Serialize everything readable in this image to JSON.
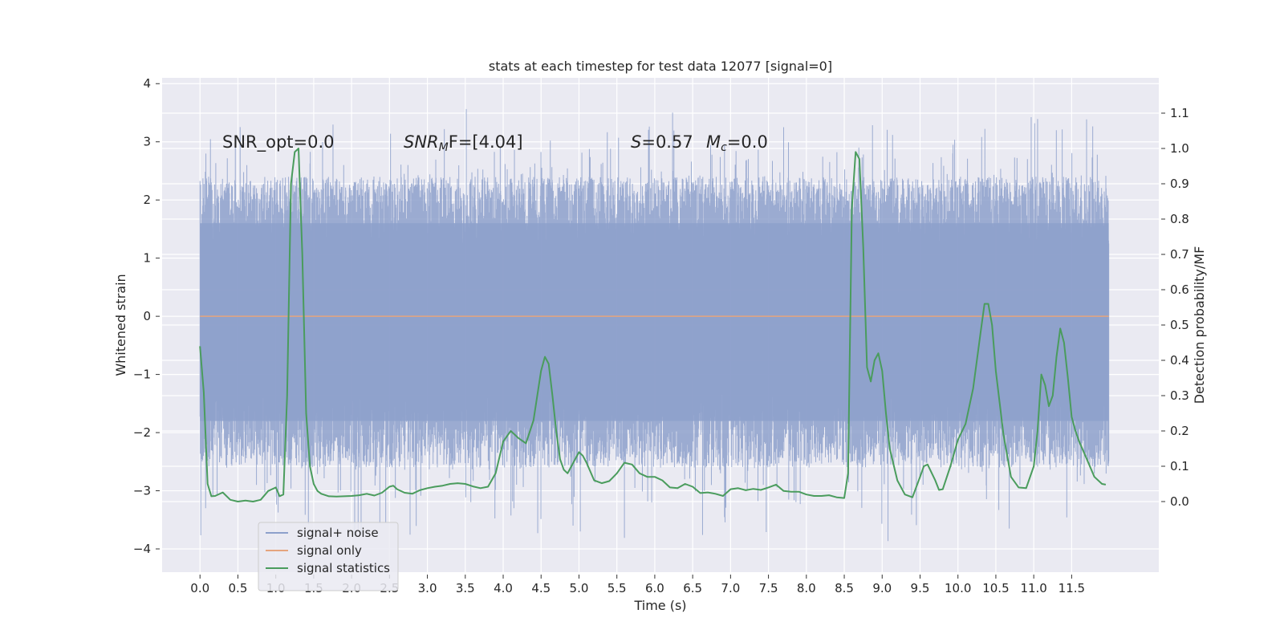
{
  "chart_data": {
    "type": "line",
    "title": "stats at each timestep for test data 12077 [signal=0]",
    "xlabel": "Time (s)",
    "ylabel": "Whitened strain",
    "ylabel_right": "Detection probability/MF",
    "xlim": [
      -0.5,
      12.65
    ],
    "ylim": [
      -4.4,
      4.1
    ],
    "ylim_right": [
      -0.2,
      1.2
    ],
    "xticks": [
      0.0,
      0.5,
      1.0,
      1.5,
      2.0,
      2.5,
      3.0,
      3.5,
      4.0,
      4.5,
      5.0,
      5.5,
      6.0,
      6.5,
      7.0,
      7.5,
      8.0,
      8.5,
      9.0,
      9.5,
      10.0,
      10.5,
      11.0,
      11.5
    ],
    "xtick_labels": [
      "0.0",
      "0.5",
      "1.0",
      "1.5",
      "2.0",
      "2.5",
      "3.0",
      "3.5",
      "4.0",
      "4.5",
      "5.0",
      "5.5",
      "6.0",
      "6.5",
      "7.0",
      "7.5",
      "8.0",
      "8.5",
      "9.0",
      "9.5",
      "10.0",
      "10.5",
      "11.0",
      "11.5"
    ],
    "yticks": [
      -4,
      -3,
      -2,
      -1,
      0,
      1,
      2,
      3,
      4
    ],
    "ytick_labels": [
      "−4",
      "−3",
      "−2",
      "−1",
      "0",
      "1",
      "2",
      "3",
      "4"
    ],
    "yticks_right": [
      0.0,
      0.1,
      0.2,
      0.3,
      0.4,
      0.5,
      0.6,
      0.7,
      0.8,
      0.9,
      1.0,
      1.1
    ],
    "ytick_labels_right": [
      "0.0",
      "0.1",
      "0.2",
      "0.3",
      "0.4",
      "0.5",
      "0.6",
      "0.7",
      "0.8",
      "0.9",
      "1.0",
      "1.1"
    ],
    "grid": true,
    "legend_position": "bottom-left",
    "series": [
      {
        "name": "signal+ noise",
        "color": "#8da0cb",
        "axis": "left",
        "description": "dense whitened noise, amplitude mostly within [-2.6, 2.4], peaks to about 3.7 and -4.1",
        "t_start": 0.0,
        "t_end": 11.99,
        "typical_range": [
          -2.6,
          2.4
        ],
        "extreme_range": [
          -4.1,
          3.7
        ]
      },
      {
        "name": "signal only",
        "color": "#e5a47e",
        "axis": "left",
        "x": [
          0.0,
          11.99
        ],
        "y": [
          0.0,
          0.0
        ]
      },
      {
        "name": "signal statistics",
        "color": "#4a9c5d",
        "axis": "right",
        "x": [
          0.0,
          0.05,
          0.1,
          0.15,
          0.2,
          0.3,
          0.4,
          0.5,
          0.6,
          0.7,
          0.8,
          0.9,
          1.0,
          1.05,
          1.1,
          1.15,
          1.2,
          1.25,
          1.3,
          1.35,
          1.4,
          1.45,
          1.5,
          1.55,
          1.6,
          1.7,
          1.8,
          1.9,
          2.0,
          2.1,
          2.2,
          2.3,
          2.4,
          2.5,
          2.55,
          2.6,
          2.7,
          2.8,
          2.9,
          3.0,
          3.1,
          3.2,
          3.3,
          3.4,
          3.5,
          3.6,
          3.7,
          3.8,
          3.9,
          4.0,
          4.1,
          4.2,
          4.3,
          4.4,
          4.5,
          4.55,
          4.6,
          4.65,
          4.7,
          4.75,
          4.8,
          4.85,
          4.9,
          5.0,
          5.05,
          5.1,
          5.2,
          5.3,
          5.4,
          5.5,
          5.6,
          5.7,
          5.8,
          5.9,
          6.0,
          6.1,
          6.2,
          6.3,
          6.4,
          6.5,
          6.6,
          6.7,
          6.8,
          6.9,
          7.0,
          7.1,
          7.2,
          7.3,
          7.4,
          7.5,
          7.6,
          7.7,
          7.8,
          7.9,
          8.0,
          8.1,
          8.2,
          8.3,
          8.4,
          8.5,
          8.55,
          8.6,
          8.65,
          8.7,
          8.75,
          8.8,
          8.85,
          8.9,
          8.95,
          9.0,
          9.05,
          9.1,
          9.2,
          9.3,
          9.4,
          9.5,
          9.55,
          9.6,
          9.7,
          9.75,
          9.8,
          9.9,
          10.0,
          10.1,
          10.2,
          10.3,
          10.35,
          10.4,
          10.45,
          10.5,
          10.6,
          10.7,
          10.8,
          10.9,
          11.0,
          11.05,
          11.1,
          11.15,
          11.2,
          11.25,
          11.3,
          11.35,
          11.4,
          11.45,
          11.5,
          11.55,
          11.6,
          11.7,
          11.8,
          11.9,
          11.95
        ],
        "y": [
          0.44,
          0.31,
          0.05,
          0.015,
          0.016,
          0.026,
          0.005,
          0.0,
          0.003,
          0.0,
          0.005,
          0.03,
          0.04,
          0.015,
          0.02,
          0.3,
          0.9,
          0.99,
          1.0,
          0.7,
          0.25,
          0.1,
          0.05,
          0.03,
          0.022,
          0.015,
          0.014,
          0.015,
          0.016,
          0.018,
          0.022,
          0.017,
          0.025,
          0.042,
          0.045,
          0.035,
          0.025,
          0.022,
          0.032,
          0.038,
          0.042,
          0.045,
          0.05,
          0.052,
          0.05,
          0.043,
          0.038,
          0.042,
          0.08,
          0.17,
          0.2,
          0.18,
          0.165,
          0.23,
          0.37,
          0.41,
          0.39,
          0.3,
          0.2,
          0.12,
          0.09,
          0.08,
          0.1,
          0.14,
          0.13,
          0.11,
          0.06,
          0.052,
          0.058,
          0.08,
          0.11,
          0.105,
          0.08,
          0.07,
          0.07,
          0.06,
          0.04,
          0.038,
          0.05,
          0.042,
          0.024,
          0.026,
          0.022,
          0.016,
          0.035,
          0.038,
          0.032,
          0.036,
          0.033,
          0.04,
          0.048,
          0.03,
          0.028,
          0.028,
          0.02,
          0.016,
          0.016,
          0.018,
          0.012,
          0.01,
          0.08,
          0.83,
          0.99,
          0.97,
          0.72,
          0.38,
          0.34,
          0.4,
          0.42,
          0.37,
          0.25,
          0.15,
          0.06,
          0.02,
          0.012,
          0.07,
          0.1,
          0.105,
          0.06,
          0.033,
          0.035,
          0.1,
          0.175,
          0.22,
          0.32,
          0.48,
          0.56,
          0.56,
          0.5,
          0.37,
          0.19,
          0.07,
          0.04,
          0.038,
          0.1,
          0.2,
          0.36,
          0.33,
          0.27,
          0.3,
          0.41,
          0.49,
          0.45,
          0.35,
          0.24,
          0.2,
          0.17,
          0.12,
          0.07,
          0.05,
          0.048
        ]
      }
    ],
    "annotations": [
      {
        "label": "SNR_opt=0.0",
        "x": 0.2,
        "y": 2.8
      },
      {
        "prefix": "SNR",
        "subscript": "M",
        "suffix": "F=[4.04]",
        "x": 2.6,
        "y": 2.8
      },
      {
        "prefix": "S",
        "suffix": "=0.57",
        "x": 5.6,
        "y": 2.8
      },
      {
        "prefix": "M",
        "subscript": "c",
        "suffix": "=0.0",
        "x": 6.6,
        "y": 2.8
      }
    ]
  },
  "legend": {
    "items": [
      {
        "label": "signal+ noise",
        "color": "#8da0cb"
      },
      {
        "label": "signal only",
        "color": "#e5a47e"
      },
      {
        "label": "signal statistics",
        "color": "#4a9c5d"
      }
    ]
  }
}
